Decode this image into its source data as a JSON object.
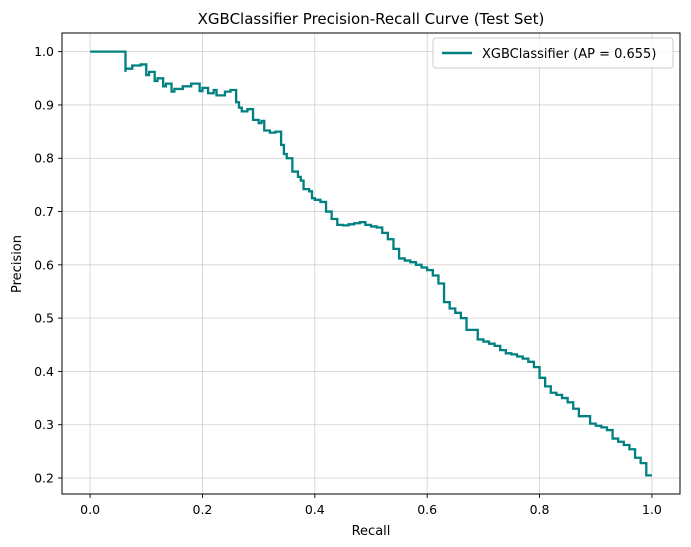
{
  "chart_data": {
    "type": "line",
    "title": "XGBClassifier Precision-Recall Curve (Test Set)",
    "xlabel": "Recall",
    "ylabel": "Precision",
    "xlim": [
      -0.05,
      1.05
    ],
    "ylim": [
      0.17,
      1.035
    ],
    "x_ticks": [
      0.0,
      0.2,
      0.4,
      0.6,
      0.8,
      1.0
    ],
    "x_tick_labels": [
      "0.0",
      "0.2",
      "0.4",
      "0.6",
      "0.8",
      "1.0"
    ],
    "y_ticks": [
      0.2,
      0.3,
      0.4,
      0.5,
      0.6,
      0.7,
      0.8,
      0.9,
      1.0
    ],
    "y_tick_labels": [
      "0.2",
      "0.3",
      "0.4",
      "0.5",
      "0.6",
      "0.7",
      "0.8",
      "0.9",
      "1.0"
    ],
    "grid": true,
    "legend_position": "top-right",
    "series": [
      {
        "name": "XGBClassifier (AP = 0.655)",
        "color": "#008080",
        "step": true,
        "x": [
          0.0,
          0.063,
          0.063,
          0.075,
          0.09,
          0.1,
          0.105,
          0.115,
          0.12,
          0.13,
          0.135,
          0.145,
          0.15,
          0.165,
          0.18,
          0.195,
          0.2,
          0.21,
          0.22,
          0.225,
          0.24,
          0.25,
          0.26,
          0.265,
          0.27,
          0.28,
          0.29,
          0.3,
          0.305,
          0.31,
          0.32,
          0.33,
          0.34,
          0.345,
          0.35,
          0.36,
          0.37,
          0.375,
          0.38,
          0.39,
          0.395,
          0.4,
          0.41,
          0.42,
          0.43,
          0.44,
          0.45,
          0.46,
          0.47,
          0.48,
          0.49,
          0.5,
          0.51,
          0.52,
          0.53,
          0.54,
          0.55,
          0.56,
          0.57,
          0.58,
          0.59,
          0.6,
          0.61,
          0.62,
          0.63,
          0.64,
          0.65,
          0.66,
          0.67,
          0.68,
          0.69,
          0.7,
          0.71,
          0.72,
          0.73,
          0.74,
          0.75,
          0.76,
          0.77,
          0.78,
          0.79,
          0.8,
          0.81,
          0.82,
          0.83,
          0.84,
          0.85,
          0.86,
          0.87,
          0.88,
          0.89,
          0.9,
          0.91,
          0.92,
          0.93,
          0.94,
          0.95,
          0.96,
          0.97,
          0.98,
          0.99,
          1.0
        ],
        "y": [
          1.0,
          1.0,
          0.962,
          0.968,
          0.974,
          0.976,
          0.956,
          0.962,
          0.945,
          0.95,
          0.935,
          0.94,
          0.925,
          0.93,
          0.935,
          0.94,
          0.926,
          0.932,
          0.922,
          0.928,
          0.918,
          0.925,
          0.928,
          0.905,
          0.895,
          0.888,
          0.892,
          0.872,
          0.866,
          0.87,
          0.852,
          0.848,
          0.85,
          0.825,
          0.808,
          0.8,
          0.775,
          0.765,
          0.758,
          0.742,
          0.738,
          0.725,
          0.722,
          0.718,
          0.7,
          0.686,
          0.675,
          0.674,
          0.676,
          0.678,
          0.68,
          0.675,
          0.672,
          0.67,
          0.66,
          0.648,
          0.63,
          0.612,
          0.608,
          0.605,
          0.6,
          0.595,
          0.59,
          0.58,
          0.565,
          0.53,
          0.518,
          0.51,
          0.5,
          0.478,
          0.478,
          0.46,
          0.456,
          0.452,
          0.448,
          0.44,
          0.434,
          0.432,
          0.428,
          0.424,
          0.418,
          0.408,
          0.388,
          0.372,
          0.36,
          0.356,
          0.35,
          0.342,
          0.33,
          0.316,
          0.316,
          0.302,
          0.298,
          0.295,
          0.29,
          0.274,
          0.268,
          0.262,
          0.254,
          0.238,
          0.228,
          0.205
        ]
      }
    ]
  }
}
